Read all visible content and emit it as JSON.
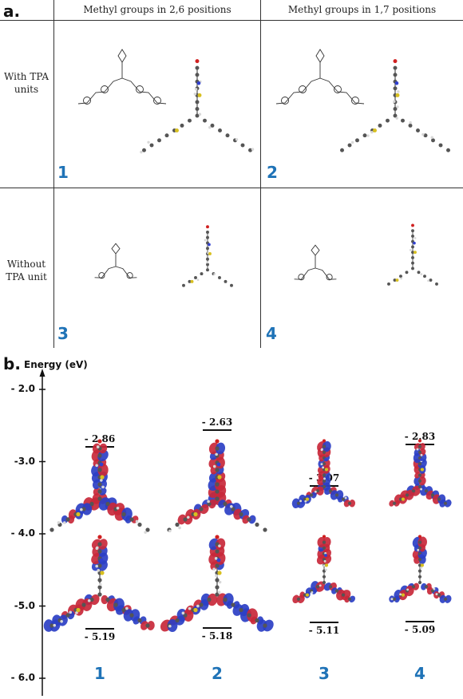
{
  "panel_a": {
    "label": "a.",
    "col_headers": [
      "Methyl groups in 2,6 positions",
      "Methyl groups in 1,7 positions"
    ],
    "row_headers": [
      {
        "line1": "With TPA",
        "line2": "units"
      },
      {
        "line1": "Without",
        "line2": "TPA unit"
      }
    ],
    "cells": [
      {
        "number": "1",
        "has_tpa": true
      },
      {
        "number": "2",
        "has_tpa": true
      },
      {
        "number": "3",
        "has_tpa": false
      },
      {
        "number": "4",
        "has_tpa": false
      }
    ]
  },
  "panel_b": {
    "label": "b.",
    "axis_title": "Energy (eV)",
    "ticks": [
      "- 2.0",
      "-3.0",
      "- 4.0",
      "-5.0",
      "- 6.0"
    ],
    "tick_values": [
      -2.0,
      -3.0,
      -4.0,
      -5.0,
      -6.0
    ],
    "compounds": [
      {
        "number": "1",
        "lumo_label": "- 2.86",
        "lumo": -2.86,
        "homo_label": "- 5.19",
        "homo": -5.19
      },
      {
        "number": "2",
        "lumo_label": "- 2.63",
        "lumo": -2.63,
        "homo_label": "- 5.18",
        "homo": -5.18
      },
      {
        "number": "3",
        "lumo_label": "- 3.07",
        "lumo": -3.07,
        "homo_label": "- 5.11",
        "homo": -5.11
      },
      {
        "number": "4",
        "lumo_label": "- 2.83",
        "lumo": -2.83,
        "homo_label": "- 5.09",
        "homo": -5.09
      }
    ],
    "orbital_colors": {
      "positive": "#c8283a",
      "negative": "#2b3fc4",
      "carbon": "#555555",
      "hydrogen": "#d8d8d8",
      "sulfur": "#d8c020",
      "nitrogen": "#3040d0",
      "oxygen": "#d02020"
    }
  }
}
